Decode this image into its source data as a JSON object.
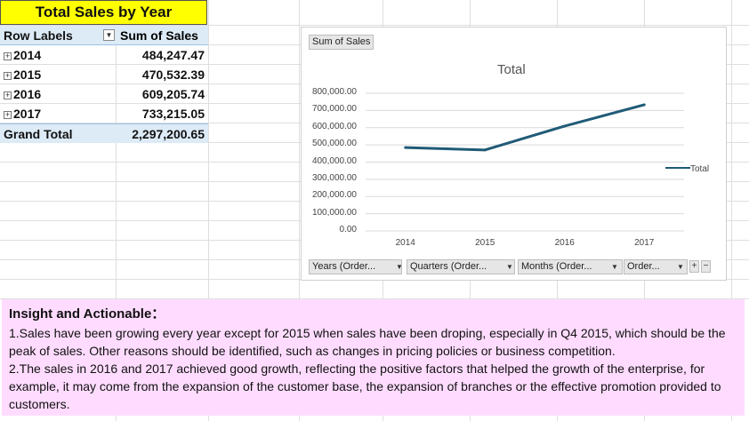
{
  "sheet": {
    "title": "Total Sales by Year",
    "pivot": {
      "header_row_labels": "Row Labels",
      "header_sum": "Sum of Sales",
      "rows": [
        {
          "label": "2014",
          "value": "484,247.47"
        },
        {
          "label": "2015",
          "value": "470,532.39"
        },
        {
          "label": "2016",
          "value": "609,205.74"
        },
        {
          "label": "2017",
          "value": "733,215.05"
        }
      ],
      "grand_total_label": "Grand Total",
      "grand_total_value": "2,297,200.65"
    }
  },
  "chart": {
    "value_field_button": "Sum of Sales",
    "axis_buttons": [
      "Years (Order...",
      "Quarters (Order...",
      "Months (Order...",
      "Order..."
    ],
    "plus_label": "+",
    "minus_label": "−",
    "line_color": "#1f5b77"
  },
  "chart_data": {
    "type": "line",
    "title": "Total",
    "categories": [
      "2014",
      "2015",
      "2016",
      "2017"
    ],
    "series": [
      {
        "name": "Total",
        "values": [
          484247.47,
          470532.39,
          609205.74,
          733215.05
        ]
      }
    ],
    "ytick_labels": [
      "800,000.00",
      "700,000.00",
      "600,000.00",
      "500,000.00",
      "400,000.00",
      "300,000.00",
      "200,000.00",
      "100,000.00",
      "0.00"
    ],
    "ylim": [
      0,
      800000
    ],
    "legend_position": "right",
    "grid": true
  },
  "insight": {
    "heading": "Insight and Actionable：",
    "point1": "1.Sales have been growing every year except for 2015 when sales have been droping, especially in Q4 2015, which should be the peak of sales. Other reasons should be identified, such as changes in pricing policies or business competition.",
    "point2": "2.The sales in 2016 and 2017 achieved good growth, reflecting the positive factors that helped the growth of the enterprise, for example, it may come from the expansion of the customer base, the expansion of branches or the effective promotion provided to customers."
  }
}
